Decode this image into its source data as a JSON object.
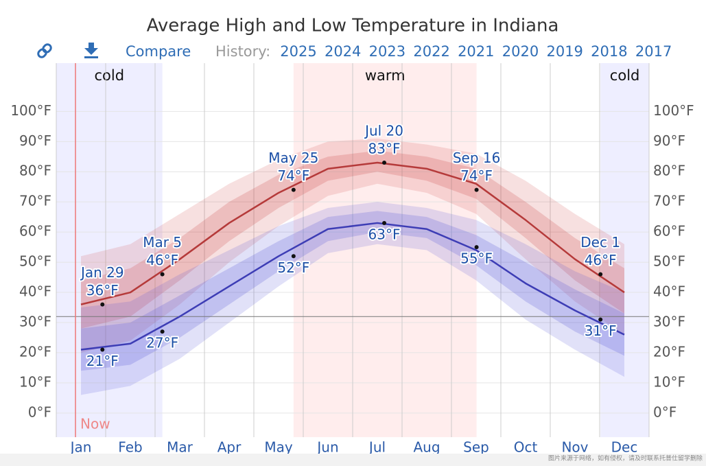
{
  "chart_data": {
    "type": "line",
    "title": "Average High and Low Temperature in Indiana",
    "categories": [
      "Jan",
      "Feb",
      "Mar",
      "Apr",
      "May",
      "Jun",
      "Jul",
      "Aug",
      "Sep",
      "Oct",
      "Nov",
      "Dec"
    ],
    "series": [
      {
        "color": "#b53a3a",
        "values": [
          36,
          40,
          51,
          63,
          73,
          81,
          83,
          81,
          76,
          64,
          51,
          40
        ]
      },
      {
        "color": "#3d3db5",
        "values": [
          21,
          23,
          32,
          42,
          52,
          61,
          63,
          61,
          54,
          43,
          34,
          26
        ]
      }
    ],
    "bands": [
      {
        "color": "rgba(205,70,70,0.17)",
        "upper": [
          52,
          56,
          66,
          76,
          84,
          90,
          91,
          89,
          86,
          77,
          66,
          56
        ],
        "lower": [
          20,
          24,
          36,
          50,
          62,
          72,
          76,
          73,
          66,
          51,
          37,
          26
        ]
      },
      {
        "color": "rgba(205,70,70,0.22)",
        "upper": [
          44,
          48,
          58,
          70,
          79,
          85,
          87,
          85,
          81,
          70,
          58,
          48
        ],
        "lower": [
          28,
          32,
          44,
          57,
          68,
          77,
          80,
          77,
          71,
          58,
          44,
          33
        ]
      },
      {
        "color": "rgba(80,80,215,0.17)",
        "upper": [
          35,
          37,
          46,
          54,
          62,
          68,
          70,
          68,
          64,
          56,
          47,
          40
        ],
        "lower": [
          6,
          9,
          18,
          30,
          42,
          53,
          56,
          54,
          44,
          31,
          21,
          12
        ]
      },
      {
        "color": "rgba(80,80,215,0.22)",
        "upper": [
          28,
          30,
          39,
          48,
          57,
          65,
          67,
          65,
          59,
          50,
          41,
          33
        ],
        "lower": [
          14,
          16,
          25,
          36,
          47,
          57,
          60,
          58,
          49,
          37,
          27,
          19
        ]
      }
    ],
    "annotations": [
      {
        "date": "Jan 29",
        "high": 36,
        "high_label": "36°F",
        "low": 21,
        "low_label": "21°F"
      },
      {
        "date": "Mar 5",
        "high": 46,
        "high_label": "46°F",
        "low": 27,
        "low_label": "27°F"
      },
      {
        "date": "May 25",
        "high": 74,
        "high_label": "74°F",
        "low": 52,
        "low_label": "52°F"
      },
      {
        "date": "Jul 20",
        "high": 83,
        "high_label": "83°F",
        "low": 63,
        "low_label": "63°F"
      },
      {
        "date": "Sep 16",
        "high": 74,
        "high_label": "74°F",
        "low": 55,
        "low_label": "55°F"
      },
      {
        "date": "Dec 1",
        "high": 46,
        "high_label": "46°F",
        "low": 31,
        "low_label": "31°F"
      }
    ],
    "seasons": [
      {
        "label": "cold",
        "to": "Mar 5",
        "color": "rgba(120,120,255,0.13)"
      },
      {
        "label": "warm",
        "from": "May 25",
        "to": "Sep 16",
        "color": "rgba(255,110,110,0.12)"
      },
      {
        "label": "cold",
        "from": "Dec 1",
        "color": "rgba(120,120,255,0.13)"
      }
    ],
    "reference_line": 32,
    "now_label": "Now",
    "ylim": [
      -8,
      116
    ],
    "yticks": [
      {
        "value": 0,
        "label": "0°F"
      },
      {
        "value": 10,
        "label": "10°F"
      },
      {
        "value": 20,
        "label": "20°F"
      },
      {
        "value": 30,
        "label": "30°F"
      },
      {
        "value": 40,
        "label": "40°F"
      },
      {
        "value": 50,
        "label": "50°F"
      },
      {
        "value": 60,
        "label": "60°F"
      },
      {
        "value": 70,
        "label": "70°F"
      },
      {
        "value": 80,
        "label": "80°F"
      },
      {
        "value": 90,
        "label": "90°F"
      },
      {
        "value": 100,
        "label": "100°F"
      }
    ],
    "grid": true
  },
  "toolbar": {
    "compare": "Compare",
    "history_label": "History:",
    "years": [
      "2025",
      "2024",
      "2023",
      "2022",
      "2021",
      "2020",
      "2019",
      "2018",
      "2017"
    ]
  },
  "watermark": "图片来源于网络，如有侵权，请及时联系托普仕留学删除"
}
